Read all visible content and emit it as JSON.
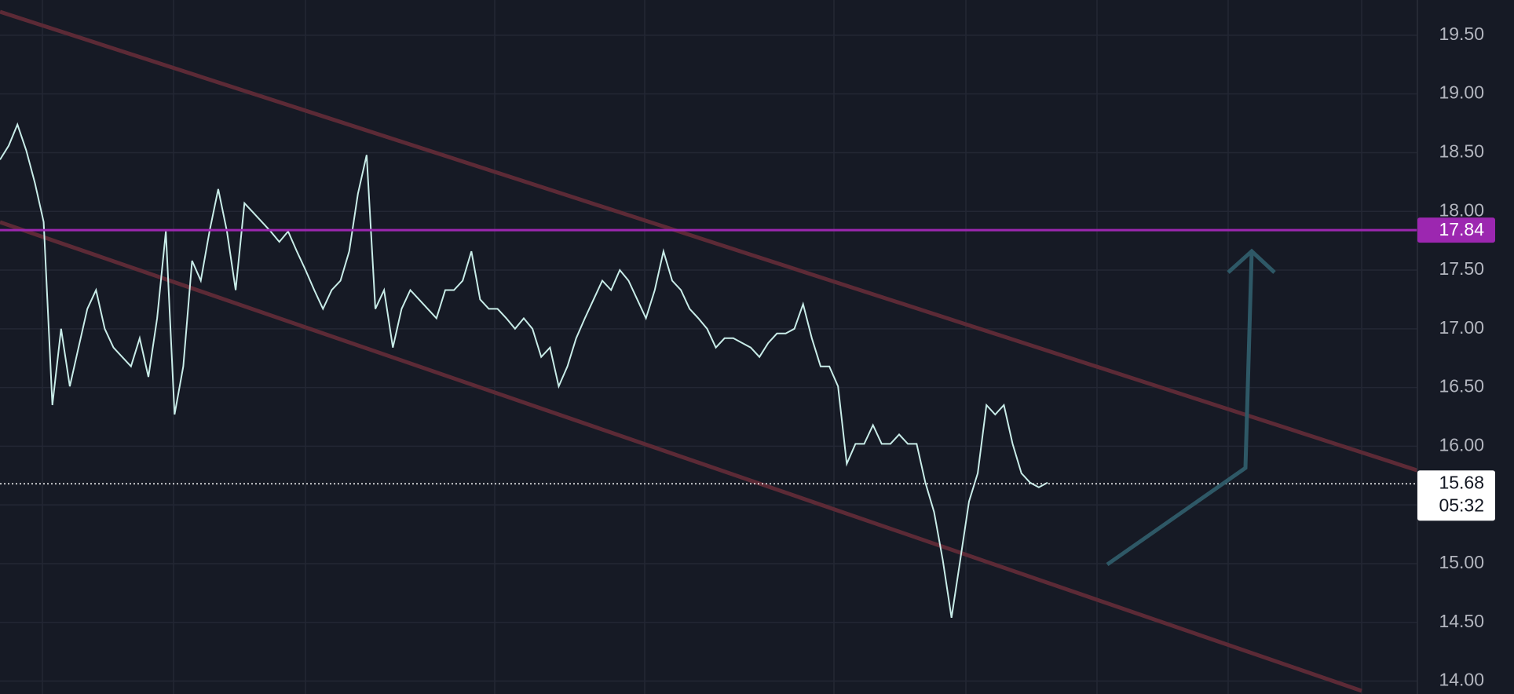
{
  "chart_data": {
    "type": "line",
    "series": [
      {
        "color": "#c8ece8",
        "values": [
          18.44,
          18.56,
          18.74,
          18.52,
          18.24,
          17.91,
          16.35,
          17.0,
          16.51,
          16.84,
          17.17,
          17.33,
          17.0,
          16.84,
          16.76,
          16.68,
          16.92,
          16.59,
          17.09,
          17.83,
          16.27,
          16.68,
          17.58,
          17.41,
          17.83,
          18.19,
          17.83,
          17.33,
          18.07,
          17.99,
          17.91,
          17.83,
          17.74,
          17.83,
          17.66,
          17.5,
          17.33,
          17.17,
          17.33,
          17.41,
          17.66,
          18.15,
          18.48,
          17.17,
          17.33,
          16.84,
          17.17,
          17.33,
          17.25,
          17.17,
          17.09,
          17.33,
          17.33,
          17.41,
          17.66,
          17.25,
          17.17,
          17.17,
          17.09,
          17.0,
          17.09,
          17.0,
          16.76,
          16.84,
          16.51,
          16.68,
          16.92,
          17.09,
          17.25,
          17.41,
          17.33,
          17.5,
          17.41,
          17.25,
          17.09,
          17.33,
          17.66,
          17.41,
          17.33,
          17.17,
          17.09,
          17.0,
          16.84,
          16.92,
          16.92,
          16.88,
          16.84,
          16.76,
          16.88,
          16.96,
          16.96,
          17.0,
          17.21,
          16.92,
          16.68,
          16.68,
          16.51,
          15.85,
          16.02,
          16.02,
          16.18,
          16.02,
          16.02,
          16.1,
          16.02,
          16.02,
          15.69,
          15.44,
          15.03,
          14.54,
          15.03,
          15.53,
          15.77,
          16.35,
          16.27,
          16.35,
          16.02,
          15.77,
          15.69,
          15.65,
          15.69
        ]
      }
    ],
    "ylim": [
      13.89,
      19.8
    ],
    "yticks": [
      {
        "value": 14,
        "label": "14.00"
      },
      {
        "value": 14.5,
        "label": "14.50"
      },
      {
        "value": 15,
        "label": "15.00"
      },
      {
        "value": 15.5,
        "label": "15.50"
      },
      {
        "value": 16,
        "label": "16.00"
      },
      {
        "value": 16.5,
        "label": "16.50"
      },
      {
        "value": 17,
        "label": "17.00"
      },
      {
        "value": 17.5,
        "label": "17.50"
      },
      {
        "value": 18,
        "label": "18.00"
      },
      {
        "value": 18.5,
        "label": "18.50"
      },
      {
        "value": 19,
        "label": "19.00"
      },
      {
        "value": 19.5,
        "label": "19.50"
      }
    ],
    "grid": true,
    "hline": {
      "value": 17.84,
      "color": "#9c27b0"
    },
    "last_price": 15.68,
    "countdown": "05:32"
  }
}
